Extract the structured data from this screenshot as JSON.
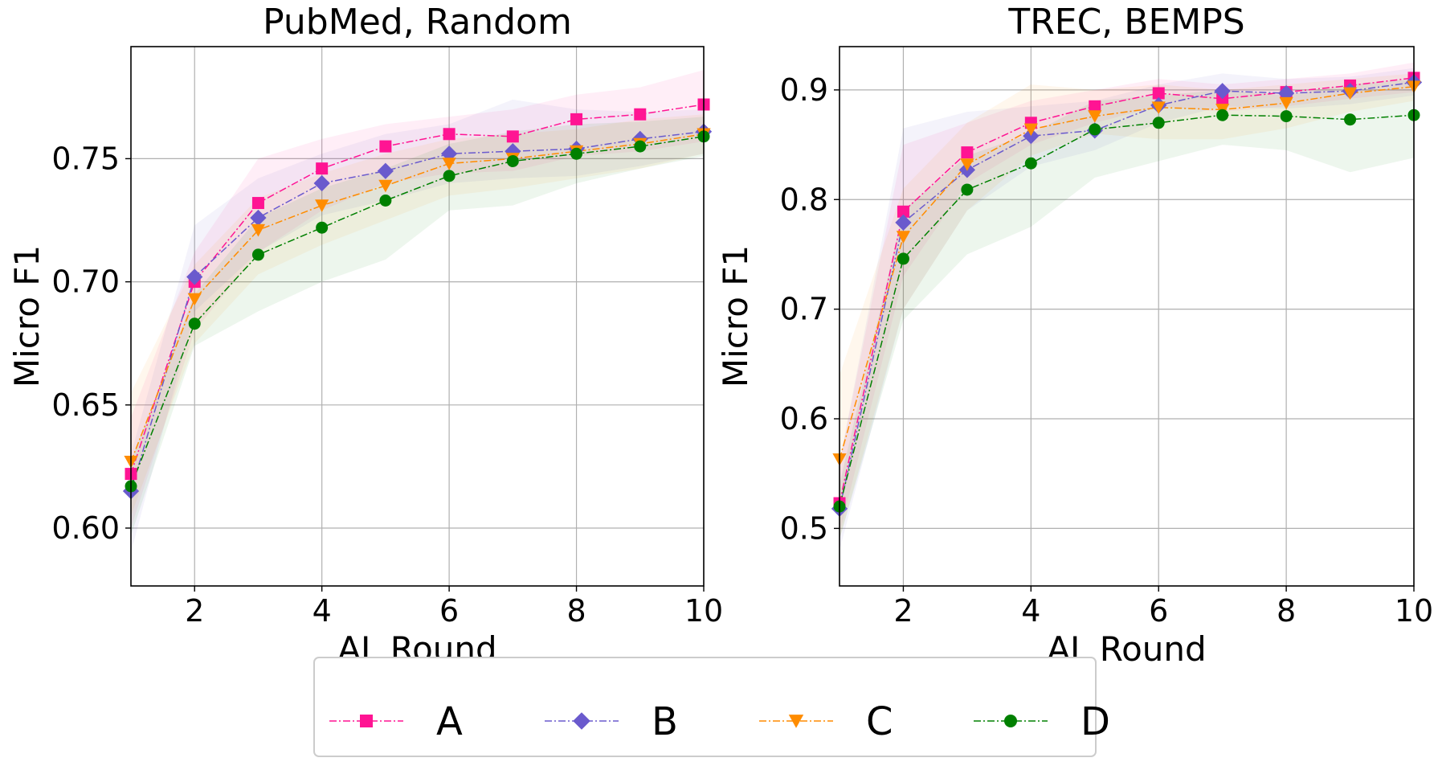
{
  "figure": {
    "legend": [
      {
        "label": "A",
        "color": "#ff1493",
        "marker": "square"
      },
      {
        "label": "B",
        "color": "#6a5acd",
        "marker": "diamond"
      },
      {
        "label": "C",
        "color": "#ff8c00",
        "marker": "triangle-down"
      },
      {
        "label": "D",
        "color": "#008000",
        "marker": "circle"
      }
    ]
  },
  "chart_data": [
    {
      "type": "line",
      "title": "PubMed, Random",
      "xlabel": "AL Round",
      "ylabel": "Micro F1",
      "xlim": [
        1,
        10
      ],
      "ylim": [
        0.5765,
        0.7955
      ],
      "xticks": [
        2,
        4,
        6,
        8,
        10
      ],
      "yticks": [
        0.6,
        0.65,
        0.7,
        0.75
      ],
      "ytick_labels": [
        "0.60",
        "0.65",
        "0.70",
        "0.75"
      ],
      "grid": true,
      "x": [
        1,
        2,
        3,
        4,
        5,
        6,
        7,
        8,
        9,
        10
      ],
      "series": [
        {
          "name": "A",
          "color": "#ff1493",
          "marker": "square",
          "values": [
            0.622,
            0.7,
            0.732,
            0.746,
            0.755,
            0.76,
            0.759,
            0.766,
            0.768,
            0.772
          ],
          "lower": [
            0.6,
            0.68,
            0.712,
            0.729,
            0.74,
            0.744,
            0.745,
            0.751,
            0.753,
            0.757
          ],
          "upper": [
            0.645,
            0.712,
            0.75,
            0.758,
            0.764,
            0.767,
            0.77,
            0.776,
            0.779,
            0.786
          ]
        },
        {
          "name": "B",
          "color": "#6a5acd",
          "marker": "diamond",
          "values": [
            0.615,
            0.702,
            0.726,
            0.74,
            0.745,
            0.752,
            0.753,
            0.754,
            0.758,
            0.761
          ],
          "lower": [
            0.59,
            0.688,
            0.712,
            0.727,
            0.733,
            0.74,
            0.742,
            0.743,
            0.747,
            0.752
          ],
          "upper": [
            0.63,
            0.723,
            0.742,
            0.752,
            0.76,
            0.764,
            0.774,
            0.77,
            0.769,
            0.77
          ]
        },
        {
          "name": "C",
          "color": "#ff8c00",
          "marker": "triangle-down",
          "values": [
            0.627,
            0.693,
            0.721,
            0.731,
            0.739,
            0.748,
            0.75,
            0.753,
            0.756,
            0.76
          ],
          "lower": [
            0.605,
            0.675,
            0.703,
            0.715,
            0.725,
            0.735,
            0.738,
            0.742,
            0.746,
            0.752
          ],
          "upper": [
            0.655,
            0.707,
            0.734,
            0.744,
            0.752,
            0.758,
            0.76,
            0.762,
            0.766,
            0.768
          ]
        },
        {
          "name": "D",
          "color": "#008000",
          "marker": "circle",
          "values": [
            0.617,
            0.683,
            0.711,
            0.722,
            0.733,
            0.743,
            0.749,
            0.752,
            0.755,
            0.759
          ],
          "lower": [
            0.597,
            0.674,
            0.688,
            0.7,
            0.709,
            0.729,
            0.731,
            0.74,
            0.746,
            0.751
          ],
          "upper": [
            0.627,
            0.695,
            0.726,
            0.738,
            0.746,
            0.756,
            0.761,
            0.764,
            0.765,
            0.767
          ]
        }
      ]
    },
    {
      "type": "line",
      "title": "TREC, BEMPS",
      "xlabel": "AL Round",
      "ylabel": "Micro F1",
      "xlim": [
        1,
        10
      ],
      "ylim": [
        0.4475,
        0.9395
      ],
      "xticks": [
        2,
        4,
        6,
        8,
        10
      ],
      "yticks": [
        0.5,
        0.6,
        0.7,
        0.8,
        0.9
      ],
      "ytick_labels": [
        "0.5",
        "0.6",
        "0.7",
        "0.8",
        "0.9"
      ],
      "grid": true,
      "x": [
        1,
        2,
        3,
        4,
        5,
        6,
        7,
        8,
        9,
        10
      ],
      "series": [
        {
          "name": "A",
          "color": "#ff1493",
          "marker": "square",
          "values": [
            0.523,
            0.789,
            0.843,
            0.87,
            0.885,
            0.897,
            0.892,
            0.898,
            0.904,
            0.911
          ],
          "lower": [
            0.495,
            0.73,
            0.815,
            0.85,
            0.87,
            0.885,
            0.88,
            0.885,
            0.892,
            0.898
          ],
          "upper": [
            0.56,
            0.85,
            0.87,
            0.89,
            0.9,
            0.91,
            0.905,
            0.91,
            0.915,
            0.925
          ]
        },
        {
          "name": "B",
          "color": "#6a5acd",
          "marker": "diamond",
          "values": [
            0.518,
            0.779,
            0.827,
            0.858,
            0.863,
            0.886,
            0.899,
            0.897,
            0.899,
            0.907
          ],
          "lower": [
            0.48,
            0.7,
            0.79,
            0.83,
            0.845,
            0.87,
            0.885,
            0.883,
            0.887,
            0.895
          ],
          "upper": [
            0.56,
            0.865,
            0.88,
            0.885,
            0.89,
            0.905,
            0.915,
            0.91,
            0.912,
            0.92
          ]
        },
        {
          "name": "C",
          "color": "#ff8c00",
          "marker": "triangle-down",
          "values": [
            0.563,
            0.766,
            0.832,
            0.864,
            0.876,
            0.884,
            0.882,
            0.888,
            0.897,
            0.903
          ],
          "lower": [
            0.49,
            0.7,
            0.79,
            0.84,
            0.86,
            0.855,
            0.855,
            0.865,
            0.88,
            0.89
          ],
          "upper": [
            0.64,
            0.81,
            0.87,
            0.905,
            0.9,
            0.905,
            0.9,
            0.905,
            0.91,
            0.915
          ]
        },
        {
          "name": "D",
          "color": "#008000",
          "marker": "circle",
          "values": [
            0.52,
            0.746,
            0.809,
            0.833,
            0.864,
            0.87,
            0.877,
            0.876,
            0.873,
            0.877
          ],
          "lower": [
            0.49,
            0.69,
            0.75,
            0.775,
            0.82,
            0.835,
            0.85,
            0.845,
            0.825,
            0.838
          ],
          "upper": [
            0.54,
            0.79,
            0.84,
            0.86,
            0.89,
            0.895,
            0.9,
            0.895,
            0.905,
            0.91
          ]
        }
      ]
    }
  ]
}
